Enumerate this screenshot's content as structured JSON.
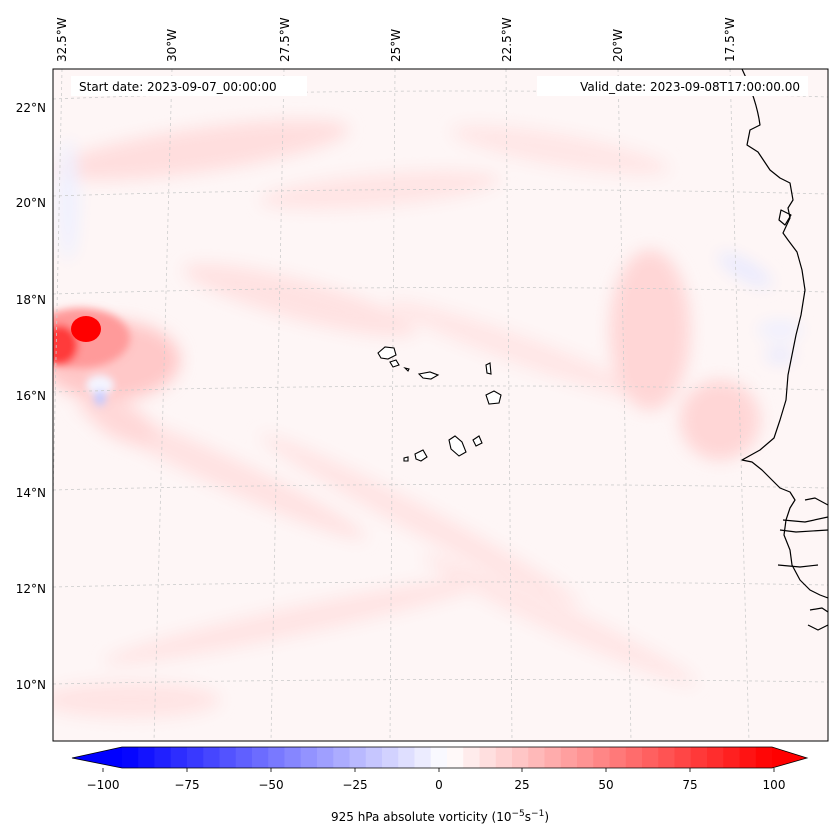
{
  "header": {
    "start_date": "Start date: 2023-09-07_00:00:00",
    "valid_date": "Valid_date: 2023-09-08T17:00:00.00"
  },
  "map": {
    "lon_labels": [
      "32.5°W",
      "30°W",
      "27.5°W",
      "25°W",
      "22.5°W",
      "20°W",
      "17.5°W"
    ],
    "lat_labels": [
      "22°N",
      "20°N",
      "18°N",
      "16°N",
      "14°N",
      "12°N",
      "10°N"
    ]
  },
  "colorbar": {
    "ticks": [
      "−100",
      "−75",
      "−50",
      "−25",
      "0",
      "25",
      "50",
      "75",
      "100"
    ],
    "label": "925 hPa absolute vorticity (10",
    "label_exp1": "−5",
    "label_mid": "s",
    "label_exp2": "−1",
    "label_end": ")",
    "vmin": -100,
    "vmax": 100,
    "levels": 41,
    "colormap": "bwr",
    "min_color": "#0000ff",
    "mid_color": "#ffffff",
    "max_color": "#ff0000"
  },
  "colors": {
    "coastline": "#000000",
    "gridline": "#cccccc"
  }
}
